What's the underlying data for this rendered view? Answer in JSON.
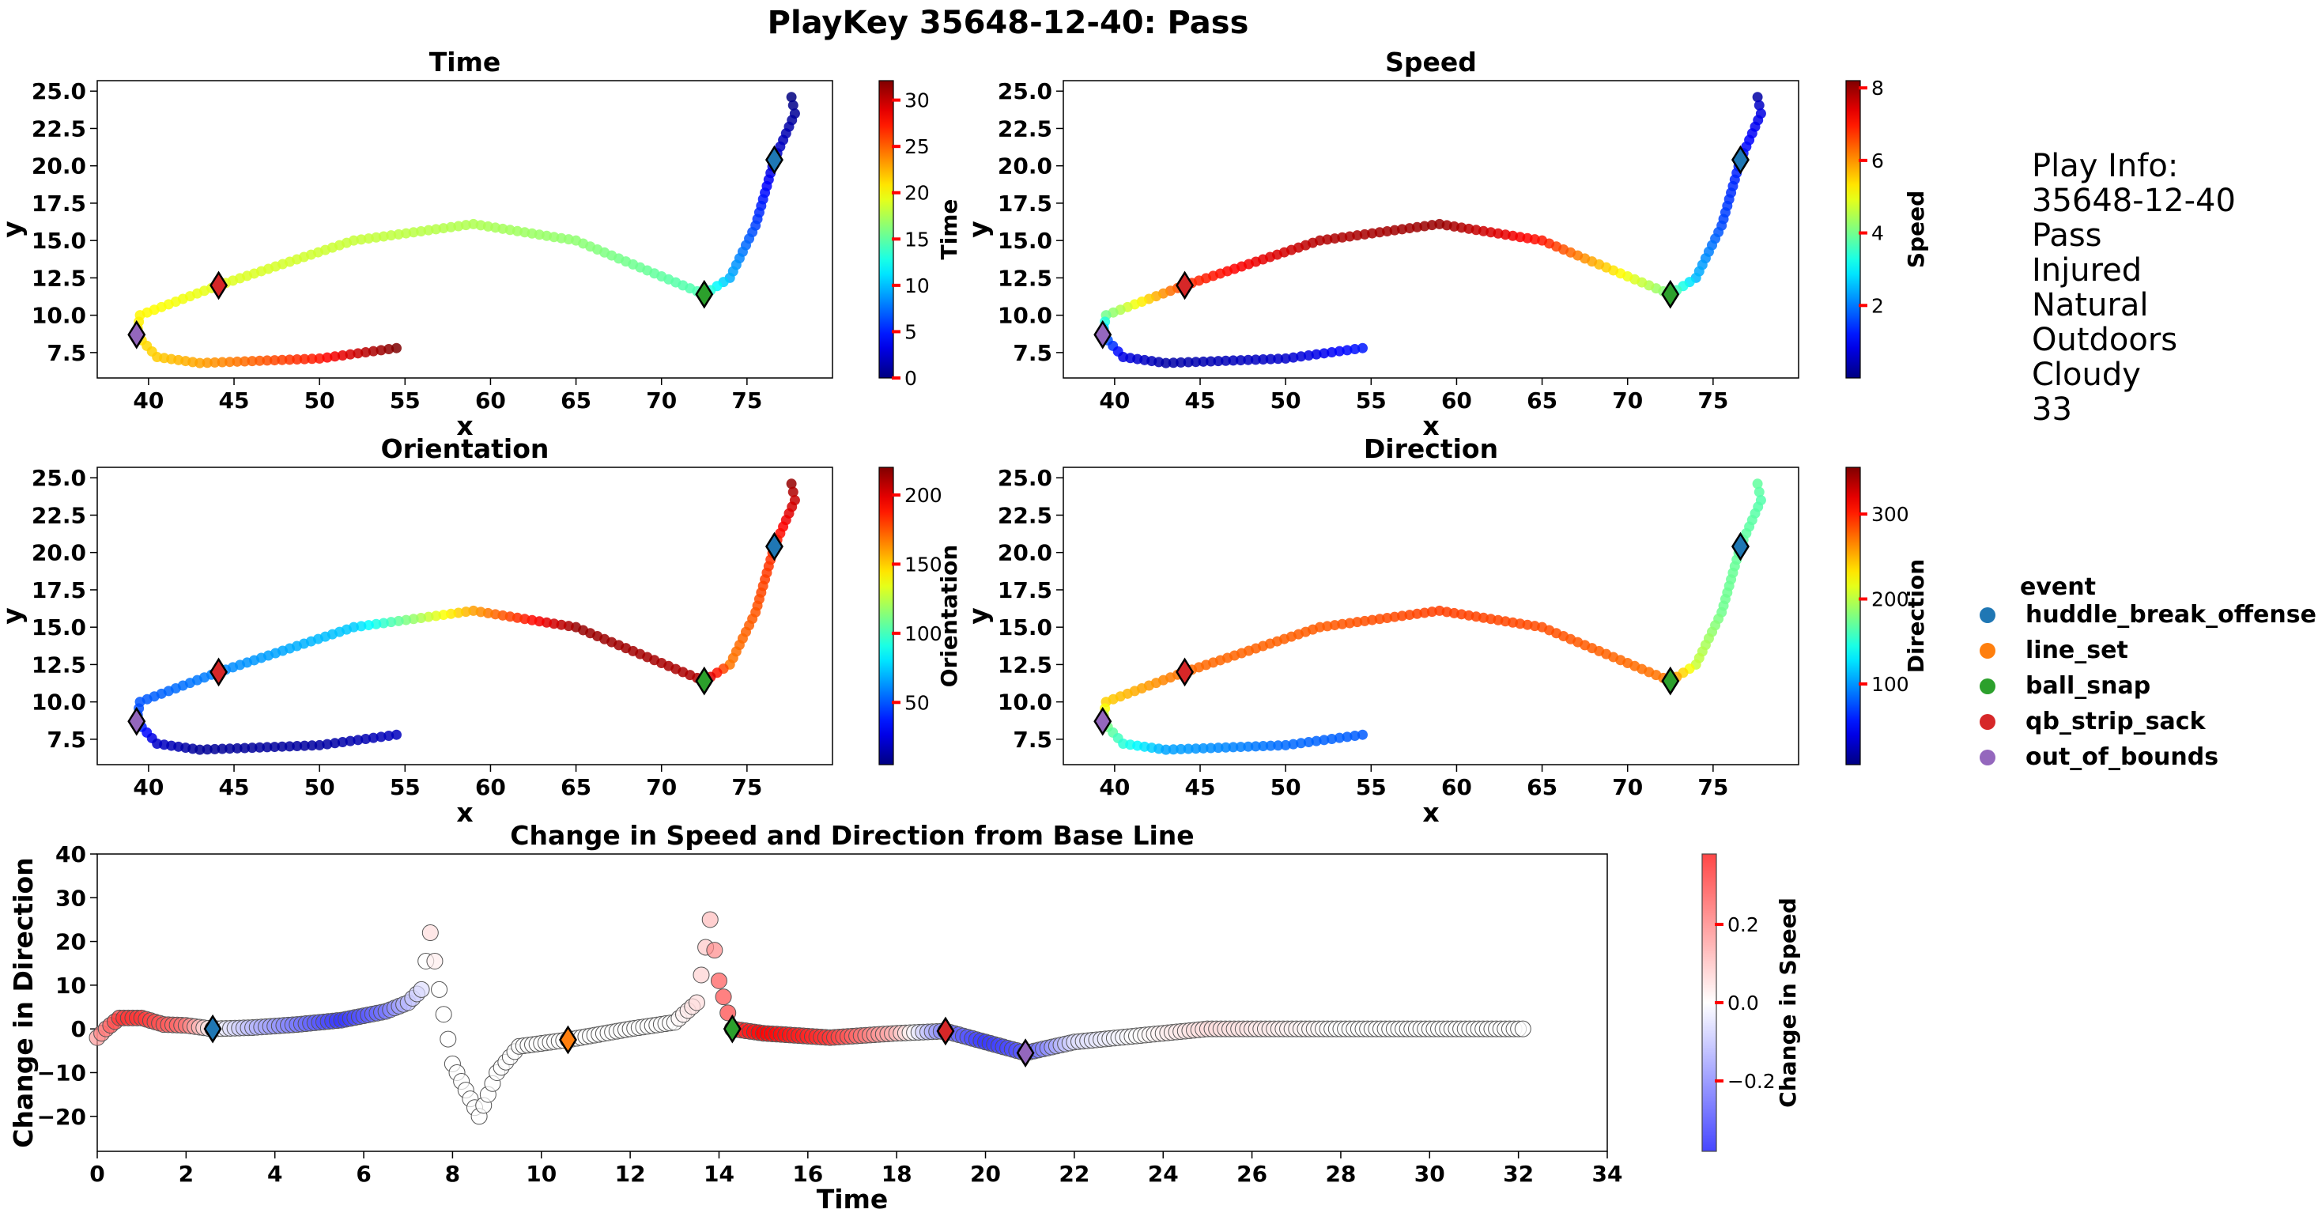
{
  "figure_title": "PlayKey 35648-12-40: Pass",
  "play_info": {
    "header": "Play Info:",
    "lines": [
      "35648-12-40",
      "Pass",
      "Injured",
      "Natural",
      "Outdoors",
      "Cloudy",
      "33"
    ]
  },
  "legend": {
    "title": "event",
    "items": [
      {
        "label": "huddle_break_offense",
        "color": "#1f77b4"
      },
      {
        "label": "line_set",
        "color": "#ff7f0e"
      },
      {
        "label": "ball_snap",
        "color": "#2ca02c"
      },
      {
        "label": "qb_strip_sack",
        "color": "#d62728"
      },
      {
        "label": "out_of_bounds",
        "color": "#9467bd"
      }
    ]
  },
  "colors": {
    "diamond_edge": "#000000",
    "colorbar_tick": "#ff0000",
    "scatter_edge_bottom": "#555555"
  },
  "chart_data": [
    {
      "type": "scatter",
      "title": "Time",
      "xlabel": "x",
      "ylabel": "y",
      "xlim": [
        37,
        80
      ],
      "ylim": [
        5.8,
        25.7
      ],
      "xticks": [
        "40",
        "45",
        "50",
        "55",
        "60",
        "65",
        "70",
        "75"
      ],
      "yticks": [
        "7.5",
        "10.0",
        "12.5",
        "15.0",
        "17.5",
        "20.0",
        "22.5",
        "25.0"
      ],
      "colorbar": {
        "label": "Time",
        "range": [
          0,
          32.1
        ],
        "ticks": [
          "0",
          "5",
          "10",
          "15",
          "20",
          "25",
          "30"
        ],
        "colormap": "jet"
      },
      "color_variable": "time",
      "events": [
        {
          "name": "huddle_break_offense",
          "x": 76.6,
          "y": 20.4
        },
        {
          "name": "ball_snap",
          "x": 72.5,
          "y": 11.4
        },
        {
          "name": "qb_strip_sack",
          "x": 44.1,
          "y": 12.0
        },
        {
          "name": "out_of_bounds",
          "x": 39.3,
          "y": 8.7
        }
      ]
    },
    {
      "type": "scatter",
      "title": "Speed",
      "xlabel": "x",
      "ylabel": "y",
      "xlim": [
        37,
        80
      ],
      "ylim": [
        5.8,
        25.7
      ],
      "xticks": [
        "40",
        "45",
        "50",
        "55",
        "60",
        "65",
        "70",
        "75"
      ],
      "yticks": [
        "7.5",
        "10.0",
        "12.5",
        "15.0",
        "17.5",
        "20.0",
        "22.5",
        "25.0"
      ],
      "colorbar": {
        "label": "Speed",
        "range": [
          0,
          8.2
        ],
        "ticks": [
          "2",
          "4",
          "6",
          "8"
        ],
        "colormap": "jet"
      },
      "color_variable": "speed",
      "events": [
        {
          "name": "huddle_break_offense",
          "x": 76.6,
          "y": 20.4
        },
        {
          "name": "ball_snap",
          "x": 72.5,
          "y": 11.4
        },
        {
          "name": "qb_strip_sack",
          "x": 44.1,
          "y": 12.0
        },
        {
          "name": "out_of_bounds",
          "x": 39.3,
          "y": 8.7
        }
      ]
    },
    {
      "type": "scatter",
      "title": "Orientation",
      "xlabel": "x",
      "ylabel": "y",
      "xlim": [
        37,
        80
      ],
      "ylim": [
        5.8,
        25.7
      ],
      "xticks": [
        "40",
        "45",
        "50",
        "55",
        "60",
        "65",
        "70",
        "75"
      ],
      "yticks": [
        "7.5",
        "10.0",
        "12.5",
        "15.0",
        "17.5",
        "20.0",
        "22.5",
        "25.0"
      ],
      "colorbar": {
        "label": "Orientation",
        "range": [
          5,
          220
        ],
        "ticks": [
          "50",
          "100",
          "150",
          "200"
        ],
        "colormap": "jet"
      },
      "color_variable": "orientation",
      "events": [
        {
          "name": "huddle_break_offense",
          "x": 76.6,
          "y": 20.4
        },
        {
          "name": "ball_snap",
          "x": 72.5,
          "y": 11.4
        },
        {
          "name": "qb_strip_sack",
          "x": 44.1,
          "y": 12.0
        },
        {
          "name": "out_of_bounds",
          "x": 39.3,
          "y": 8.7
        }
      ]
    },
    {
      "type": "scatter",
      "title": "Direction",
      "xlabel": "x",
      "ylabel": "y",
      "xlim": [
        37,
        80
      ],
      "ylim": [
        5.8,
        25.7
      ],
      "xticks": [
        "40",
        "45",
        "50",
        "55",
        "60",
        "65",
        "70",
        "75"
      ],
      "yticks": [
        "7.5",
        "10.0",
        "12.5",
        "15.0",
        "17.5",
        "20.0",
        "22.5",
        "25.0"
      ],
      "colorbar": {
        "label": "Direction",
        "range": [
          5,
          355
        ],
        "ticks": [
          "100",
          "200",
          "300"
        ],
        "colormap": "jet"
      },
      "color_variable": "direction",
      "events": [
        {
          "name": "huddle_break_offense",
          "x": 76.6,
          "y": 20.4
        },
        {
          "name": "ball_snap",
          "x": 72.5,
          "y": 11.4
        },
        {
          "name": "qb_strip_sack",
          "x": 44.1,
          "y": 12.0
        },
        {
          "name": "out_of_bounds",
          "x": 39.3,
          "y": 8.7
        }
      ]
    },
    {
      "type": "scatter",
      "title": "Change in Speed and Direction from Base Line",
      "xlabel": "Time",
      "ylabel": "Change in Direction",
      "xlim": [
        0,
        34
      ],
      "ylim": [
        -28,
        40
      ],
      "xticks": [
        "0",
        "2",
        "4",
        "6",
        "8",
        "10",
        "12",
        "14",
        "16",
        "18",
        "20",
        "22",
        "24",
        "26",
        "28",
        "30",
        "32",
        "34"
      ],
      "yticks": [
        "−20",
        "−10",
        "0",
        "10",
        "20",
        "30",
        "40"
      ],
      "colorbar": {
        "label": "Change in Speed",
        "range": [
          -0.38,
          0.38
        ],
        "ticks": [
          "−0.2",
          "0.0",
          "0.2"
        ],
        "colormap": "bwr"
      },
      "events": [
        {
          "name": "huddle_break_offense",
          "x": 2.6,
          "y": 0
        },
        {
          "name": "line_set",
          "x": 10.6,
          "y": -2.5
        },
        {
          "name": "ball_snap",
          "x": 14.3,
          "y": 0
        },
        {
          "name": "qb_strip_sack",
          "x": 19.1,
          "y": -0.5
        },
        {
          "name": "out_of_bounds",
          "x": 20.9,
          "y": -5.5
        }
      ],
      "anchor_points": [
        {
          "t": 0.0,
          "dir": -2.0,
          "dspeed": 0.15
        },
        {
          "t": 0.2,
          "dir": 0.0,
          "dspeed": 0.2
        },
        {
          "t": 0.5,
          "dir": 2.5,
          "dspeed": 0.3
        },
        {
          "t": 1.0,
          "dir": 2.5,
          "dspeed": 0.3
        },
        {
          "t": 1.5,
          "dir": 1.0,
          "dspeed": 0.25
        },
        {
          "t": 2.0,
          "dir": 0.8,
          "dspeed": 0.2
        },
        {
          "t": 2.6,
          "dir": 0.0,
          "dspeed": 0.0
        },
        {
          "t": 3.5,
          "dir": 0.3,
          "dspeed": -0.1
        },
        {
          "t": 4.5,
          "dir": 1.0,
          "dspeed": -0.2
        },
        {
          "t": 5.5,
          "dir": 2.0,
          "dspeed": -0.3
        },
        {
          "t": 6.5,
          "dir": 4.0,
          "dspeed": -0.2
        },
        {
          "t": 7.0,
          "dir": 6.0,
          "dspeed": -0.1
        },
        {
          "t": 7.3,
          "dir": 9.0,
          "dspeed": -0.05
        },
        {
          "t": 7.5,
          "dir": 22.0,
          "dspeed": 0.05
        },
        {
          "t": 7.7,
          "dir": 9.0,
          "dspeed": 0.0
        },
        {
          "t": 8.0,
          "dir": -8.0,
          "dspeed": 0.0
        },
        {
          "t": 8.3,
          "dir": -14.0,
          "dspeed": 0.0
        },
        {
          "t": 8.6,
          "dir": -20.0,
          "dspeed": 0.0
        },
        {
          "t": 9.0,
          "dir": -10.0,
          "dspeed": 0.0
        },
        {
          "t": 9.5,
          "dir": -4.0,
          "dspeed": 0.0
        },
        {
          "t": 10.6,
          "dir": -2.5,
          "dspeed": 0.0
        },
        {
          "t": 12.0,
          "dir": 0.0,
          "dspeed": 0.0
        },
        {
          "t": 13.0,
          "dir": 1.5,
          "dspeed": 0.0
        },
        {
          "t": 13.5,
          "dir": 6.0,
          "dspeed": 0.05
        },
        {
          "t": 13.8,
          "dir": 25.0,
          "dspeed": 0.1
        },
        {
          "t": 14.0,
          "dir": 11.0,
          "dspeed": 0.25
        },
        {
          "t": 14.3,
          "dir": 0.0,
          "dspeed": 0.3
        },
        {
          "t": 15.0,
          "dir": -1.0,
          "dspeed": 0.38
        },
        {
          "t": 16.5,
          "dir": -2.0,
          "dspeed": 0.3
        },
        {
          "t": 18.0,
          "dir": -1.0,
          "dspeed": 0.1
        },
        {
          "t": 19.1,
          "dir": -0.5,
          "dspeed": -0.2
        },
        {
          "t": 20.0,
          "dir": -3.0,
          "dspeed": -0.3
        },
        {
          "t": 20.9,
          "dir": -5.5,
          "dspeed": -0.25
        },
        {
          "t": 22.0,
          "dir": -3.0,
          "dspeed": -0.05
        },
        {
          "t": 24.0,
          "dir": -1.0,
          "dspeed": 0.02
        },
        {
          "t": 25.0,
          "dir": 0.0,
          "dspeed": 0.05
        },
        {
          "t": 28.0,
          "dir": 0.0,
          "dspeed": 0.0
        },
        {
          "t": 32.1,
          "dir": 0.0,
          "dspeed": 0.0
        }
      ]
    }
  ],
  "trajectory": {
    "description_keys": [
      "x",
      "y",
      "time",
      "speed",
      "orientation",
      "direction"
    ],
    "anchors": [
      {
        "x": 77.6,
        "y": 24.6,
        "time": 0.0,
        "speed": 0.3,
        "orientation": 215,
        "direction": 170
      },
      {
        "x": 77.8,
        "y": 23.5,
        "time": 0.7,
        "speed": 0.8,
        "orientation": 205,
        "direction": 165
      },
      {
        "x": 76.6,
        "y": 20.4,
        "time": 2.6,
        "speed": 1.2,
        "orientation": 185,
        "direction": 170
      },
      {
        "x": 75.5,
        "y": 16.0,
        "time": 6.0,
        "speed": 1.6,
        "orientation": 175,
        "direction": 175
      },
      {
        "x": 74.0,
        "y": 12.5,
        "time": 9.5,
        "speed": 2.5,
        "orientation": 168,
        "direction": 205
      },
      {
        "x": 72.5,
        "y": 11.4,
        "time": 14.3,
        "speed": 4.0,
        "orientation": 210,
        "direction": 270
      },
      {
        "x": 65.0,
        "y": 15.0,
        "time": 16.5,
        "speed": 7.0,
        "orientation": 215,
        "direction": 285
      },
      {
        "x": 59.0,
        "y": 16.1,
        "time": 17.5,
        "speed": 8.0,
        "orientation": 160,
        "direction": 290
      },
      {
        "x": 52.0,
        "y": 15.0,
        "time": 18.3,
        "speed": 7.8,
        "orientation": 75,
        "direction": 280
      },
      {
        "x": 44.1,
        "y": 12.0,
        "time": 19.1,
        "speed": 6.8,
        "orientation": 60,
        "direction": 275
      },
      {
        "x": 39.5,
        "y": 10.0,
        "time": 20.3,
        "speed": 4.0,
        "orientation": 50,
        "direction": 240
      },
      {
        "x": 39.3,
        "y": 8.7,
        "time": 20.9,
        "speed": 2.0,
        "orientation": 45,
        "direction": 185
      },
      {
        "x": 40.5,
        "y": 7.2,
        "time": 21.7,
        "speed": 0.8,
        "orientation": 20,
        "direction": 150
      },
      {
        "x": 43.0,
        "y": 6.8,
        "time": 23.0,
        "speed": 0.3,
        "orientation": 10,
        "direction": 105
      },
      {
        "x": 50.0,
        "y": 7.1,
        "time": 27.5,
        "speed": 0.6,
        "orientation": 12,
        "direction": 85
      },
      {
        "x": 54.5,
        "y": 7.8,
        "time": 32.1,
        "speed": 1.2,
        "orientation": 18,
        "direction": 80
      }
    ]
  }
}
